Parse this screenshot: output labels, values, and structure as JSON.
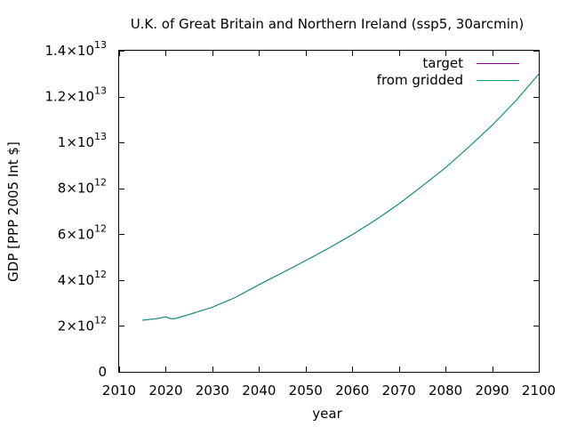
{
  "chart_data": {
    "type": "line",
    "title": "U.K. of Great Britain and Northern Ireland (ssp5, 30arcmin)",
    "xlabel": "year",
    "ylabel": "GDP [PPP 2005 Int $]",
    "xlim": [
      2010,
      2100
    ],
    "ylim": [
      0,
      14000000000000
    ],
    "x_ticks": [
      2010,
      2020,
      2030,
      2040,
      2050,
      2060,
      2070,
      2080,
      2090,
      2100
    ],
    "y_ticks": [
      {
        "value": 0,
        "mantissa": "0",
        "exponent": ""
      },
      {
        "value": 2000000000000,
        "mantissa": "2×10",
        "exponent": "12"
      },
      {
        "value": 4000000000000,
        "mantissa": "4×10",
        "exponent": "12"
      },
      {
        "value": 6000000000000,
        "mantissa": "6×10",
        "exponent": "12"
      },
      {
        "value": 8000000000000,
        "mantissa": "8×10",
        "exponent": "12"
      },
      {
        "value": 10000000000000,
        "mantissa": "1×10",
        "exponent": "13"
      },
      {
        "value": 12000000000000,
        "mantissa": "1.2×10",
        "exponent": "13"
      },
      {
        "value": 14000000000000,
        "mantissa": "1.4×10",
        "exponent": "13"
      }
    ],
    "legend_position": "top-right",
    "grid": false,
    "series": [
      {
        "name": "target",
        "color": "#8b008b",
        "x": [
          2015,
          2018,
          2020,
          2021,
          2022,
          2025,
          2030,
          2035,
          2040,
          2045,
          2050,
          2055,
          2060,
          2065,
          2070,
          2075,
          2080,
          2085,
          2090,
          2095,
          2100
        ],
        "y": [
          2250000000000,
          2320000000000,
          2400000000000,
          2320000000000,
          2320000000000,
          2500000000000,
          2820000000000,
          3250000000000,
          3800000000000,
          4320000000000,
          4850000000000,
          5400000000000,
          5980000000000,
          6620000000000,
          7320000000000,
          8100000000000,
          8900000000000,
          9800000000000,
          10750000000000,
          11800000000000,
          12980000000000
        ]
      },
      {
        "name": "from gridded",
        "color": "#009e73",
        "x": [
          2015,
          2018,
          2020,
          2021,
          2022,
          2025,
          2030,
          2035,
          2040,
          2045,
          2050,
          2055,
          2060,
          2065,
          2070,
          2075,
          2080,
          2085,
          2090,
          2095,
          2100
        ],
        "y": [
          2250000000000,
          2320000000000,
          2400000000000,
          2320000000000,
          2320000000000,
          2500000000000,
          2820000000000,
          3250000000000,
          3800000000000,
          4320000000000,
          4850000000000,
          5400000000000,
          5980000000000,
          6620000000000,
          7320000000000,
          8100000000000,
          8900000000000,
          9800000000000,
          10750000000000,
          11800000000000,
          12980000000000
        ]
      }
    ]
  }
}
